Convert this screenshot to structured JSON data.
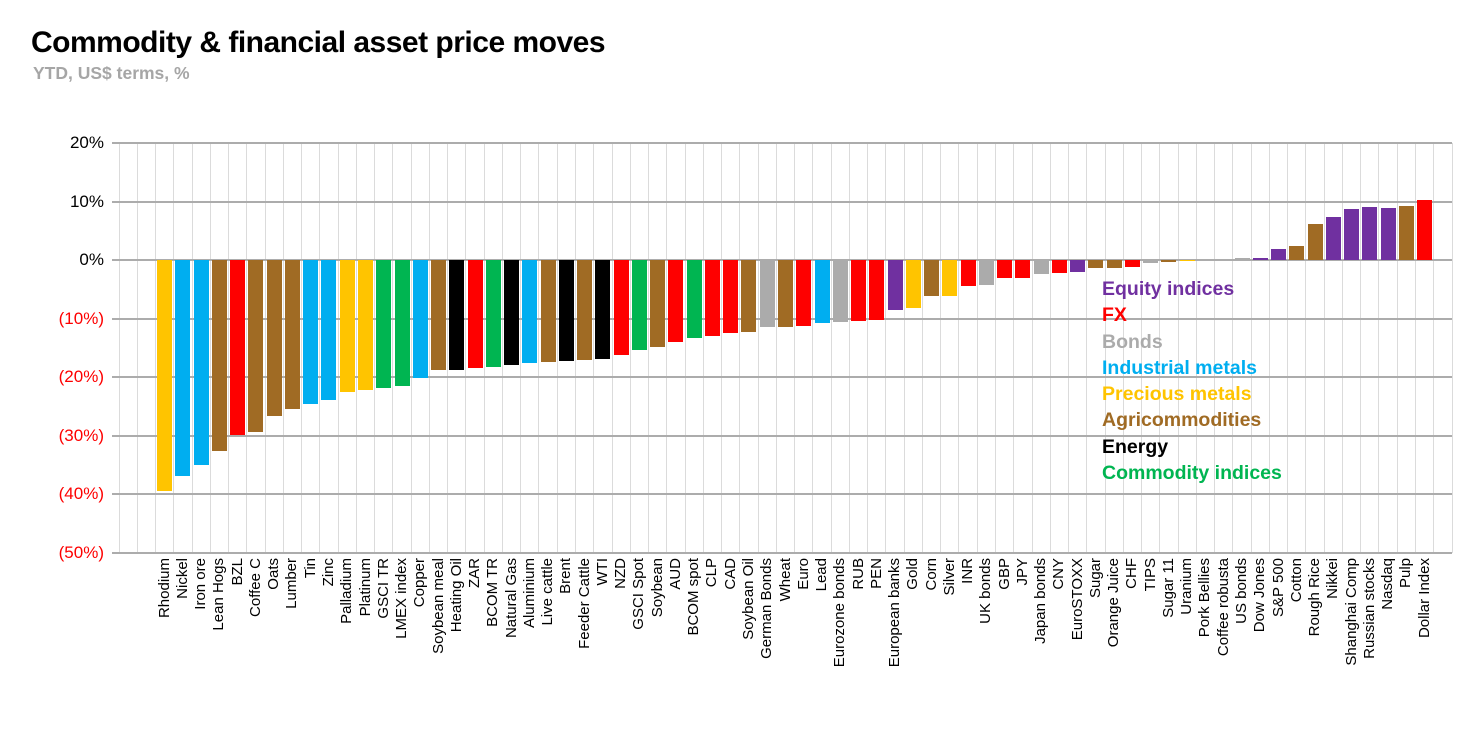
{
  "header": {
    "title": "Commodity & financial asset price moves",
    "subtitle": "YTD, US$ terms, %"
  },
  "chart_data": {
    "type": "bar",
    "unit": "%",
    "ylim": [
      -50,
      20
    ],
    "grid": true,
    "legend_position": "inside-right",
    "y_ticks": [
      {
        "label": "20%",
        "value": 20,
        "color": "#000000"
      },
      {
        "label": "10%",
        "value": 10,
        "color": "#000000"
      },
      {
        "label": "0%",
        "value": 0,
        "color": "#000000"
      },
      {
        "label": "(10%)",
        "value": -10,
        "color": "#fe0000"
      },
      {
        "label": "(20%)",
        "value": -20,
        "color": "#fe0000"
      },
      {
        "label": "(30%)",
        "value": -30,
        "color": "#fe0000"
      },
      {
        "label": "(40%)",
        "value": -40,
        "color": "#fe0000"
      },
      {
        "label": "(50%)",
        "value": -50,
        "color": "#fe0000"
      }
    ],
    "legend": [
      {
        "key": "equity_indices",
        "label": "Equity indices",
        "color": "#7030a0"
      },
      {
        "key": "fx",
        "label": "FX",
        "color": "#fe0000"
      },
      {
        "key": "bonds",
        "label": "Bonds",
        "color": "#ababab"
      },
      {
        "key": "industrial_metals",
        "label": "Industrial metals",
        "color": "#00aef0"
      },
      {
        "key": "precious_metals",
        "label": "Precious metals",
        "color": "#ffc400"
      },
      {
        "key": "agricommodities",
        "label": "Agricommodities",
        "color": "#a06b24"
      },
      {
        "key": "energy",
        "label": "Energy",
        "color": "#000000"
      },
      {
        "key": "commodity_indices",
        "label": "Commodity indices",
        "color": "#00b551"
      }
    ],
    "bars": [
      {
        "label": "Rhodium",
        "value": -39.5,
        "group": "precious_metals"
      },
      {
        "label": "Nickel",
        "value": -36.9,
        "group": "industrial_metals"
      },
      {
        "label": "Iron ore",
        "value": -35.0,
        "group": "industrial_metals"
      },
      {
        "label": "Lean Hogs",
        "value": -32.6,
        "group": "agricommodities"
      },
      {
        "label": "BZL",
        "value": -29.9,
        "group": "fx"
      },
      {
        "label": "Coffee C",
        "value": -29.4,
        "group": "agricommodities"
      },
      {
        "label": "Oats",
        "value": -26.6,
        "group": "agricommodities"
      },
      {
        "label": "Lumber",
        "value": -25.5,
        "group": "agricommodities"
      },
      {
        "label": "Tin",
        "value": -24.6,
        "group": "industrial_metals"
      },
      {
        "label": "Zinc",
        "value": -23.8,
        "group": "industrial_metals"
      },
      {
        "label": "Palladium",
        "value": -22.6,
        "group": "precious_metals"
      },
      {
        "label": "Platinum",
        "value": -22.1,
        "group": "precious_metals"
      },
      {
        "label": "GSCI TR",
        "value": -21.8,
        "group": "commodity_indices"
      },
      {
        "label": "LMEX index",
        "value": -21.5,
        "group": "commodity_indices"
      },
      {
        "label": "Copper",
        "value": -20.2,
        "group": "industrial_metals"
      },
      {
        "label": "Soybean meal",
        "value": -18.8,
        "group": "agricommodities"
      },
      {
        "label": "Heating Oil",
        "value": -18.7,
        "group": "energy"
      },
      {
        "label": "ZAR",
        "value": -18.5,
        "group": "fx"
      },
      {
        "label": "BCOM TR",
        "value": -18.3,
        "group": "commodity_indices"
      },
      {
        "label": "Natural Gas",
        "value": -17.9,
        "group": "energy"
      },
      {
        "label": "Aluminium",
        "value": -17.6,
        "group": "industrial_metals"
      },
      {
        "label": "Live cattle",
        "value": -17.4,
        "group": "agricommodities"
      },
      {
        "label": "Brent",
        "value": -17.2,
        "group": "energy"
      },
      {
        "label": "Feeder Cattle",
        "value": -17.1,
        "group": "agricommodities"
      },
      {
        "label": "WTI",
        "value": -16.8,
        "group": "energy"
      },
      {
        "label": "NZD",
        "value": -16.2,
        "group": "fx"
      },
      {
        "label": "GSCI Spot",
        "value": -15.4,
        "group": "commodity_indices"
      },
      {
        "label": "Soybean",
        "value": -14.8,
        "group": "agricommodities"
      },
      {
        "label": "AUD",
        "value": -14.0,
        "group": "fx"
      },
      {
        "label": "BCOM spot",
        "value": -13.3,
        "group": "commodity_indices"
      },
      {
        "label": "CLP",
        "value": -12.9,
        "group": "fx"
      },
      {
        "label": "CAD",
        "value": -12.5,
        "group": "fx"
      },
      {
        "label": "Soybean Oil",
        "value": -12.3,
        "group": "agricommodities"
      },
      {
        "label": "German Bonds",
        "value": -11.5,
        "group": "bonds"
      },
      {
        "label": "Wheat",
        "value": -11.4,
        "group": "agricommodities"
      },
      {
        "label": "Euro",
        "value": -11.3,
        "group": "fx"
      },
      {
        "label": "Lead",
        "value": -10.7,
        "group": "industrial_metals"
      },
      {
        "label": "Eurozone bonds",
        "value": -10.5,
        "group": "bonds"
      },
      {
        "label": "RUB",
        "value": -10.4,
        "group": "fx"
      },
      {
        "label": "PEN",
        "value": -10.3,
        "group": "fx"
      },
      {
        "label": "European banks",
        "value": -8.6,
        "group": "equity_indices"
      },
      {
        "label": "Gold",
        "value": -8.1,
        "group": "precious_metals"
      },
      {
        "label": "Corn",
        "value": -6.2,
        "group": "agricommodities"
      },
      {
        "label": "Silver",
        "value": -6.1,
        "group": "precious_metals"
      },
      {
        "label": "INR",
        "value": -4.4,
        "group": "fx"
      },
      {
        "label": "UK bonds",
        "value": -4.3,
        "group": "bonds"
      },
      {
        "label": "GBP",
        "value": -3.1,
        "group": "fx"
      },
      {
        "label": "JPY",
        "value": -3.0,
        "group": "fx"
      },
      {
        "label": "Japan bonds",
        "value": -2.4,
        "group": "bonds"
      },
      {
        "label": "CNY",
        "value": -2.2,
        "group": "fx"
      },
      {
        "label": "EuroSTOXX",
        "value": -2.1,
        "group": "equity_indices"
      },
      {
        "label": "Sugar",
        "value": -1.4,
        "group": "agricommodities"
      },
      {
        "label": "Orange Juice",
        "value": -1.3,
        "group": "agricommodities"
      },
      {
        "label": "CHF",
        "value": -1.1,
        "group": "fx"
      },
      {
        "label": "TIPS",
        "value": -0.5,
        "group": "bonds"
      },
      {
        "label": "Sugar 11",
        "value": -0.4,
        "group": "agricommodities"
      },
      {
        "label": "Uranium",
        "value": -0.2,
        "group": "precious_metals"
      },
      {
        "label": "Pork Bellies",
        "value": 0.0,
        "group": "agricommodities"
      },
      {
        "label": "Coffee robusta",
        "value": 0.0,
        "group": "agricommodities"
      },
      {
        "label": "US bonds",
        "value": 0.3,
        "group": "bonds"
      },
      {
        "label": "Dow Jones",
        "value": 0.4,
        "group": "equity_indices"
      },
      {
        "label": "S&P 500",
        "value": 1.9,
        "group": "equity_indices"
      },
      {
        "label": "Cotton",
        "value": 2.5,
        "group": "agricommodities"
      },
      {
        "label": "Rough Rice",
        "value": 6.1,
        "group": "agricommodities"
      },
      {
        "label": "Nikkei",
        "value": 7.3,
        "group": "equity_indices"
      },
      {
        "label": "Shanghai Comp",
        "value": 8.7,
        "group": "equity_indices"
      },
      {
        "label": "Russian stocks",
        "value": 9.0,
        "group": "equity_indices"
      },
      {
        "label": "Nasdaq",
        "value": 8.9,
        "group": "equity_indices"
      },
      {
        "label": "Pulp",
        "value": 9.3,
        "group": "agricommodities"
      },
      {
        "label": "Dollar Index",
        "value": 10.3,
        "group": "fx"
      }
    ]
  }
}
